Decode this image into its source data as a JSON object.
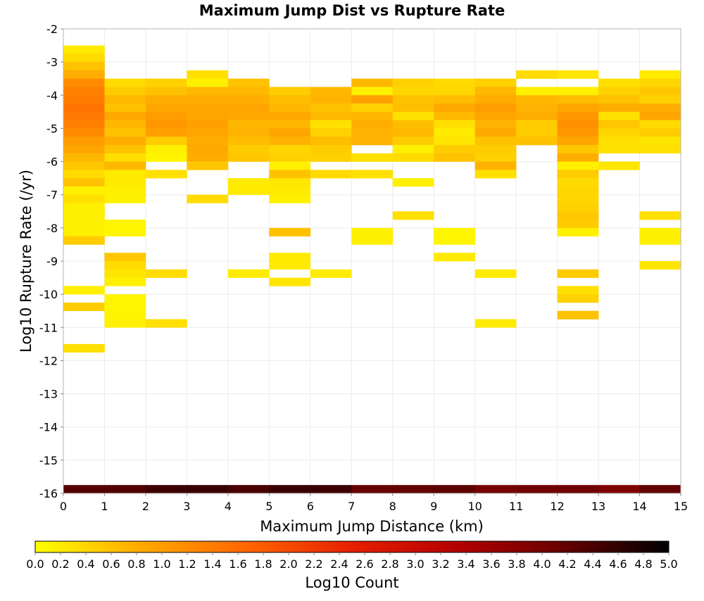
{
  "chart_data": {
    "type": "heatmap",
    "title": "Maximum Jump Dist vs Rupture Rate",
    "xlabel": "Maximum Jump Distance (km)",
    "ylabel": "Log10 Rupture Rate (/yr)",
    "colorbar_label": "Log10 Count",
    "xlim": [
      0,
      15
    ],
    "ylim": [
      -16,
      -2
    ],
    "x_ticks": [
      "0",
      "1",
      "2",
      "3",
      "4",
      "5",
      "6",
      "7",
      "8",
      "9",
      "10",
      "11",
      "12",
      "13",
      "14",
      "15"
    ],
    "y_ticks": [
      "-2",
      "-3",
      "-4",
      "-5",
      "-6",
      "-7",
      "-8",
      "-9",
      "-10",
      "-11",
      "-12",
      "-13",
      "-14",
      "-15",
      "-16"
    ],
    "colorbar_ticks": [
      "0.0",
      "0.2",
      "0.4",
      "0.6",
      "0.8",
      "1.0",
      "1.2",
      "1.4",
      "1.6",
      "1.8",
      "2.0",
      "2.2",
      "2.4",
      "2.6",
      "2.8",
      "3.0",
      "3.2",
      "3.4",
      "3.6",
      "3.8",
      "4.0",
      "4.2",
      "4.4",
      "4.6",
      "4.8",
      "5.0"
    ],
    "colorbar_range": [
      0,
      5
    ],
    "colormap": [
      "#ffff00",
      "#ffaa00",
      "#ff6600",
      "#e62000",
      "#b30000",
      "#660000",
      "#000000"
    ],
    "grid": true,
    "x_bin_width": 1,
    "y_bin_height": 0.25,
    "cells": [
      [
        0,
        -2.75,
        0.2
      ],
      [
        0,
        -3.0,
        0.35
      ],
      [
        0,
        -3.25,
        0.6
      ],
      [
        0,
        -3.5,
        0.8
      ],
      [
        0,
        -3.75,
        1.2
      ],
      [
        0,
        -4.0,
        1.35
      ],
      [
        0,
        -4.25,
        1.4
      ],
      [
        0,
        -4.5,
        1.5
      ],
      [
        0,
        -4.75,
        1.45
      ],
      [
        0,
        -5.0,
        1.35
      ],
      [
        0,
        -5.25,
        1.2
      ],
      [
        0,
        -5.5,
        1.0
      ],
      [
        0,
        -5.75,
        0.9
      ],
      [
        0,
        -6.0,
        0.7
      ],
      [
        0,
        -6.25,
        0.55
      ],
      [
        0,
        -6.5,
        0.35
      ],
      [
        0,
        -6.75,
        0.6
      ],
      [
        0,
        -7.0,
        0.15
      ],
      [
        0,
        -7.25,
        0.3
      ],
      [
        0,
        -7.5,
        0.15
      ],
      [
        0,
        -7.75,
        0.15
      ],
      [
        0,
        -8.0,
        0.15
      ],
      [
        0,
        -8.25,
        0.15
      ],
      [
        0,
        -8.5,
        0.5
      ],
      [
        0,
        -10.0,
        0.15
      ],
      [
        0,
        -10.5,
        0.5
      ],
      [
        0,
        -11.75,
        0.3
      ],
      [
        1,
        -3.75,
        0.35
      ],
      [
        1,
        -4.0,
        0.5
      ],
      [
        1,
        -4.25,
        0.7
      ],
      [
        1,
        -4.5,
        0.6
      ],
      [
        1,
        -4.75,
        0.85
      ],
      [
        1,
        -5.0,
        0.7
      ],
      [
        1,
        -5.25,
        0.6
      ],
      [
        1,
        -5.5,
        0.8
      ],
      [
        1,
        -5.75,
        0.6
      ],
      [
        1,
        -6.0,
        0.3
      ],
      [
        1,
        -6.25,
        0.7
      ],
      [
        1,
        -6.5,
        0.2
      ],
      [
        1,
        -6.75,
        0.2
      ],
      [
        1,
        -7.0,
        0.15
      ],
      [
        1,
        -7.25,
        0.15
      ],
      [
        1,
        -8.0,
        0.1
      ],
      [
        1,
        -8.25,
        0.1
      ],
      [
        1,
        -9.0,
        0.55
      ],
      [
        1,
        -9.25,
        0.35
      ],
      [
        1,
        -9.5,
        0.25
      ],
      [
        1,
        -9.75,
        0.15
      ],
      [
        1,
        -10.25,
        0.1
      ],
      [
        1,
        -10.5,
        0.1
      ],
      [
        1,
        -10.75,
        0.1
      ],
      [
        1,
        -11.0,
        0.15
      ],
      [
        2,
        -3.75,
        0.45
      ],
      [
        2,
        -4.0,
        0.6
      ],
      [
        2,
        -4.25,
        0.8
      ],
      [
        2,
        -4.5,
        0.9
      ],
      [
        2,
        -4.75,
        1.0
      ],
      [
        2,
        -5.0,
        1.05
      ],
      [
        2,
        -5.25,
        0.95
      ],
      [
        2,
        -5.5,
        0.5
      ],
      [
        2,
        -5.75,
        0.15
      ],
      [
        2,
        -6.0,
        0.1
      ],
      [
        2,
        -6.5,
        0.3
      ],
      [
        2,
        -9.5,
        0.35
      ],
      [
        2,
        -11.0,
        0.3
      ],
      [
        3,
        -3.5,
        0.3
      ],
      [
        3,
        -3.75,
        0.15
      ],
      [
        3,
        -4.0,
        0.7
      ],
      [
        3,
        -4.25,
        0.8
      ],
      [
        3,
        -4.5,
        0.9
      ],
      [
        3,
        -4.75,
        0.9
      ],
      [
        3,
        -5.0,
        0.95
      ],
      [
        3,
        -5.25,
        0.9
      ],
      [
        3,
        -5.5,
        0.8
      ],
      [
        3,
        -5.75,
        0.85
      ],
      [
        3,
        -6.0,
        0.8
      ],
      [
        3,
        -6.25,
        0.55
      ],
      [
        3,
        -7.25,
        0.35
      ],
      [
        4,
        -3.75,
        0.6
      ],
      [
        4,
        -4.0,
        0.7
      ],
      [
        4,
        -4.25,
        0.8
      ],
      [
        4,
        -4.5,
        0.9
      ],
      [
        4,
        -4.75,
        0.85
      ],
      [
        4,
        -5.0,
        0.7
      ],
      [
        4,
        -5.25,
        0.75
      ],
      [
        4,
        -5.5,
        0.65
      ],
      [
        4,
        -5.75,
        0.5
      ],
      [
        4,
        -6.0,
        0.55
      ],
      [
        4,
        -6.75,
        0.2
      ],
      [
        4,
        -7.0,
        0.2
      ],
      [
        4,
        -9.5,
        0.2
      ],
      [
        5,
        -4.0,
        0.5
      ],
      [
        5,
        -4.25,
        0.65
      ],
      [
        5,
        -4.5,
        0.7
      ],
      [
        5,
        -4.75,
        0.85
      ],
      [
        5,
        -5.0,
        0.7
      ],
      [
        5,
        -5.25,
        0.9
      ],
      [
        5,
        -5.5,
        0.75
      ],
      [
        5,
        -5.75,
        0.4
      ],
      [
        5,
        -6.0,
        0.45
      ],
      [
        5,
        -6.25,
        0.15
      ],
      [
        5,
        -6.5,
        0.6
      ],
      [
        5,
        -6.75,
        0.25
      ],
      [
        5,
        -7.0,
        0.2
      ],
      [
        5,
        -7.25,
        0.15
      ],
      [
        5,
        -8.25,
        0.6
      ],
      [
        5,
        -9.0,
        0.2
      ],
      [
        5,
        -9.25,
        0.2
      ],
      [
        5,
        -9.75,
        0.25
      ],
      [
        6,
        -4.0,
        0.7
      ],
      [
        6,
        -4.25,
        0.75
      ],
      [
        6,
        -4.5,
        0.6
      ],
      [
        6,
        -4.75,
        0.7
      ],
      [
        6,
        -5.0,
        0.3
      ],
      [
        6,
        -5.25,
        0.45
      ],
      [
        6,
        -5.5,
        0.65
      ],
      [
        6,
        -5.75,
        0.5
      ],
      [
        6,
        -6.0,
        0.45
      ],
      [
        6,
        -6.5,
        0.35
      ],
      [
        6,
        -9.5,
        0.2
      ],
      [
        7,
        -3.75,
        0.7
      ],
      [
        7,
        -4.0,
        0.15
      ],
      [
        7,
        -4.25,
        0.95
      ],
      [
        7,
        -4.5,
        0.45
      ],
      [
        7,
        -4.75,
        0.7
      ],
      [
        7,
        -5.0,
        0.8
      ],
      [
        7,
        -5.25,
        0.75
      ],
      [
        7,
        -5.5,
        0.75
      ],
      [
        7,
        -6.0,
        0.3
      ],
      [
        7,
        -6.5,
        0.3
      ],
      [
        7,
        -8.25,
        0.15
      ],
      [
        7,
        -8.5,
        0.15
      ],
      [
        8,
        -3.75,
        0.45
      ],
      [
        8,
        -4.0,
        0.4
      ],
      [
        8,
        -4.25,
        0.6
      ],
      [
        8,
        -4.5,
        0.65
      ],
      [
        8,
        -4.75,
        0.3
      ],
      [
        8,
        -5.0,
        0.65
      ],
      [
        8,
        -5.25,
        0.7
      ],
      [
        8,
        -5.5,
        0.5
      ],
      [
        8,
        -5.75,
        0.15
      ],
      [
        8,
        -6.0,
        0.35
      ],
      [
        8,
        -6.75,
        0.15
      ],
      [
        8,
        -7.75,
        0.3
      ],
      [
        9,
        -3.75,
        0.35
      ],
      [
        9,
        -4.0,
        0.4
      ],
      [
        9,
        -4.25,
        0.65
      ],
      [
        9,
        -4.5,
        0.85
      ],
      [
        9,
        -4.75,
        0.7
      ],
      [
        9,
        -5.0,
        0.3
      ],
      [
        9,
        -5.25,
        0.2
      ],
      [
        9,
        -5.5,
        0.25
      ],
      [
        9,
        -5.75,
        0.5
      ],
      [
        9,
        -6.0,
        0.6
      ],
      [
        9,
        -8.25,
        0.1
      ],
      [
        9,
        -8.5,
        0.1
      ],
      [
        9,
        -9.0,
        0.2
      ],
      [
        10,
        -3.75,
        0.45
      ],
      [
        10,
        -4.0,
        0.7
      ],
      [
        10,
        -4.25,
        0.8
      ],
      [
        10,
        -4.5,
        1.0
      ],
      [
        10,
        -4.75,
        0.9
      ],
      [
        10,
        -5.0,
        0.75
      ],
      [
        10,
        -5.25,
        0.85
      ],
      [
        10,
        -5.5,
        0.6
      ],
      [
        10,
        -5.75,
        0.5
      ],
      [
        10,
        -6.0,
        0.45
      ],
      [
        10,
        -6.25,
        0.75
      ],
      [
        10,
        -6.5,
        0.3
      ],
      [
        10,
        -9.5,
        0.2
      ],
      [
        10,
        -11.0,
        0.2
      ],
      [
        11,
        -3.5,
        0.35
      ],
      [
        11,
        -4.0,
        0.15
      ],
      [
        11,
        -4.25,
        0.7
      ],
      [
        11,
        -4.5,
        0.75
      ],
      [
        11,
        -4.75,
        0.8
      ],
      [
        11,
        -5.0,
        0.5
      ],
      [
        11,
        -5.25,
        0.5
      ],
      [
        11,
        -5.5,
        0.6
      ],
      [
        12,
        -3.5,
        0.25
      ],
      [
        12,
        -4.0,
        0.15
      ],
      [
        12,
        -4.25,
        0.65
      ],
      [
        12,
        -4.5,
        0.9
      ],
      [
        12,
        -4.75,
        1.05
      ],
      [
        12,
        -5.0,
        1.15
      ],
      [
        12,
        -5.25,
        1.05
      ],
      [
        12,
        -5.5,
        0.9
      ],
      [
        12,
        -5.75,
        0.55
      ],
      [
        12,
        -6.0,
        0.8
      ],
      [
        12,
        -6.25,
        0.15
      ],
      [
        12,
        -6.5,
        0.5
      ],
      [
        12,
        -6.75,
        0.35
      ],
      [
        12,
        -7.0,
        0.4
      ],
      [
        12,
        -7.25,
        0.4
      ],
      [
        12,
        -7.5,
        0.45
      ],
      [
        12,
        -7.75,
        0.55
      ],
      [
        12,
        -8.0,
        0.5
      ],
      [
        12,
        -8.25,
        0.15
      ],
      [
        12,
        -9.5,
        0.5
      ],
      [
        12,
        -10.0,
        0.3
      ],
      [
        12,
        -10.25,
        0.45
      ],
      [
        12,
        -10.75,
        0.6
      ],
      [
        13,
        -3.75,
        0.3
      ],
      [
        13,
        -4.0,
        0.45
      ],
      [
        13,
        -4.25,
        0.6
      ],
      [
        13,
        -4.5,
        0.8
      ],
      [
        13,
        -4.75,
        0.3
      ],
      [
        13,
        -5.0,
        0.55
      ],
      [
        13,
        -5.25,
        0.4
      ],
      [
        13,
        -5.5,
        0.3
      ],
      [
        13,
        -5.75,
        0.3
      ],
      [
        13,
        -6.25,
        0.25
      ],
      [
        14,
        -3.5,
        0.2
      ],
      [
        14,
        -3.75,
        0.4
      ],
      [
        14,
        -4.0,
        0.55
      ],
      [
        14,
        -4.25,
        0.45
      ],
      [
        14,
        -4.5,
        0.8
      ],
      [
        14,
        -4.75,
        0.9
      ],
      [
        14,
        -5.0,
        0.35
      ],
      [
        14,
        -5.25,
        0.5
      ],
      [
        14,
        -5.5,
        0.25
      ],
      [
        14,
        -5.75,
        0.3
      ],
      [
        14,
        -7.75,
        0.3
      ],
      [
        14,
        -8.25,
        0.15
      ],
      [
        14,
        -8.5,
        0.15
      ],
      [
        14,
        -9.25,
        0.25
      ],
      [
        0,
        -16,
        4.3
      ],
      [
        1,
        -16,
        4.35
      ],
      [
        2,
        -16,
        4.5
      ],
      [
        3,
        -16,
        4.55
      ],
      [
        4,
        -16,
        4.4
      ],
      [
        5,
        -16,
        4.55
      ],
      [
        6,
        -16,
        4.5
      ],
      [
        7,
        -16,
        4.15
      ],
      [
        8,
        -16,
        4.2
      ],
      [
        9,
        -16,
        4.25
      ],
      [
        10,
        -16,
        4.0
      ],
      [
        11,
        -16,
        4.05
      ],
      [
        12,
        -16,
        4.05
      ],
      [
        13,
        -16,
        3.9
      ],
      [
        14,
        -16,
        4.2
      ]
    ]
  }
}
